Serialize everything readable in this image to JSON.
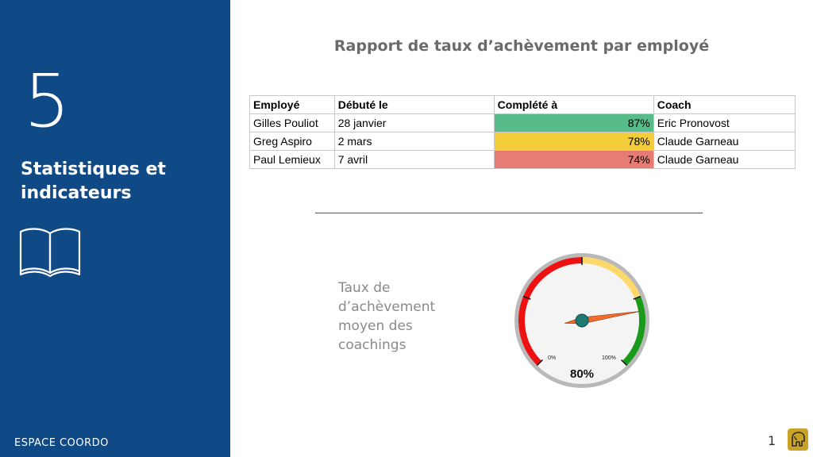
{
  "sidebar": {
    "number": "5",
    "title": "Statistiques et indicateurs",
    "brand": "ESPACE COORDO",
    "icon": "open-book-icon",
    "background": "#0f4a86"
  },
  "report": {
    "title": "Rapport de taux d’achèvement par employé",
    "columns": [
      "Employé",
      "Débuté le",
      "Complété à",
      "Coach"
    ],
    "rows": [
      {
        "employee": "Gilles Pouliot",
        "started": "28 janvier",
        "completed": "87%",
        "completed_value": 87,
        "coach": "Eric Pronovost",
        "color": "#57bb8a"
      },
      {
        "employee": "Greg Aspiro",
        "started": "2 mars",
        "completed": "78%",
        "completed_value": 78,
        "coach": "Claude Garneau",
        "color": "#f4cd3b"
      },
      {
        "employee": "Paul Lemieux",
        "started": "7 avril",
        "completed": "74%",
        "completed_value": 74,
        "coach": "Claude Garneau",
        "color": "#e67c73"
      }
    ]
  },
  "gauge": {
    "caption": "Taux de d’achèvement moyen des coachings",
    "min_label": "0%",
    "max_label": "100%",
    "value": 80,
    "value_label": "80%",
    "colors": {
      "low": "#ee1111",
      "mid": "#fcd96a",
      "high": "#1a9a1a",
      "needle": "#f26b2c",
      "hub": "#1f7a73"
    }
  },
  "footer": {
    "page_number": "1",
    "logo_icon": "elephant-logo-icon"
  }
}
